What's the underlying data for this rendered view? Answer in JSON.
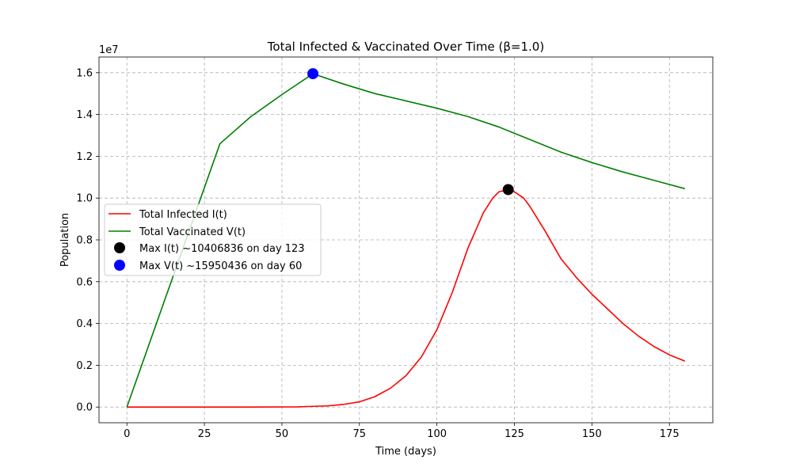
{
  "chart_data": {
    "type": "line",
    "title": "Total Infected & Vaccinated Over Time (β=1.0)",
    "xlabel": "Time (days)",
    "ylabel": "Population",
    "y_offset_label": "1e7",
    "xlim": [
      -9,
      189
    ],
    "ylim": [
      -750000,
      16750000
    ],
    "x_ticks": [
      0,
      25,
      50,
      75,
      100,
      125,
      150,
      175
    ],
    "y_ticks": [
      0,
      2000000,
      4000000,
      6000000,
      8000000,
      10000000,
      12000000,
      14000000,
      16000000
    ],
    "y_tick_labels": [
      "0.0",
      "0.2",
      "0.4",
      "0.6",
      "0.8",
      "1.0",
      "1.2",
      "1.4",
      "1.6"
    ],
    "grid": true,
    "legend_position": "center-left",
    "series": [
      {
        "name": "Total Infected I(t)",
        "color": "#ff0000",
        "x": [
          0,
          20,
          40,
          55,
          65,
          70,
          75,
          80,
          85,
          90,
          95,
          100,
          105,
          110,
          115,
          118,
          120,
          123,
          125,
          128,
          130,
          135,
          140,
          145,
          150,
          155,
          160,
          165,
          170,
          175,
          180
        ],
        "y": [
          0,
          0,
          0,
          10000,
          60000,
          130000,
          250000,
          500000,
          900000,
          1500000,
          2400000,
          3700000,
          5500000,
          7600000,
          9300000,
          10000000,
          10300000,
          10406836,
          10300000,
          10000000,
          9600000,
          8400000,
          7100000,
          6200000,
          5400000,
          4700000,
          4000000,
          3400000,
          2900000,
          2500000,
          2200000
        ]
      },
      {
        "name": "Total Vaccinated V(t)",
        "color": "#008000",
        "x": [
          0,
          10,
          20,
          30,
          40,
          50,
          60,
          70,
          80,
          90,
          100,
          110,
          120,
          130,
          140,
          150,
          160,
          170,
          180
        ],
        "y": [
          0,
          4200000,
          8400000,
          12600000,
          13900000,
          14950000,
          15950436,
          15450000,
          15000000,
          14650000,
          14300000,
          13900000,
          13400000,
          12800000,
          12200000,
          11700000,
          11250000,
          10850000,
          10450000
        ]
      }
    ],
    "markers": [
      {
        "name": "Max I(t) ~10406836 on day 123",
        "x": 123,
        "y": 10406836,
        "color": "#000000"
      },
      {
        "name": "Max V(t) ~15950436 on day 60",
        "x": 60,
        "y": 15950436,
        "color": "#0000ff"
      }
    ]
  }
}
